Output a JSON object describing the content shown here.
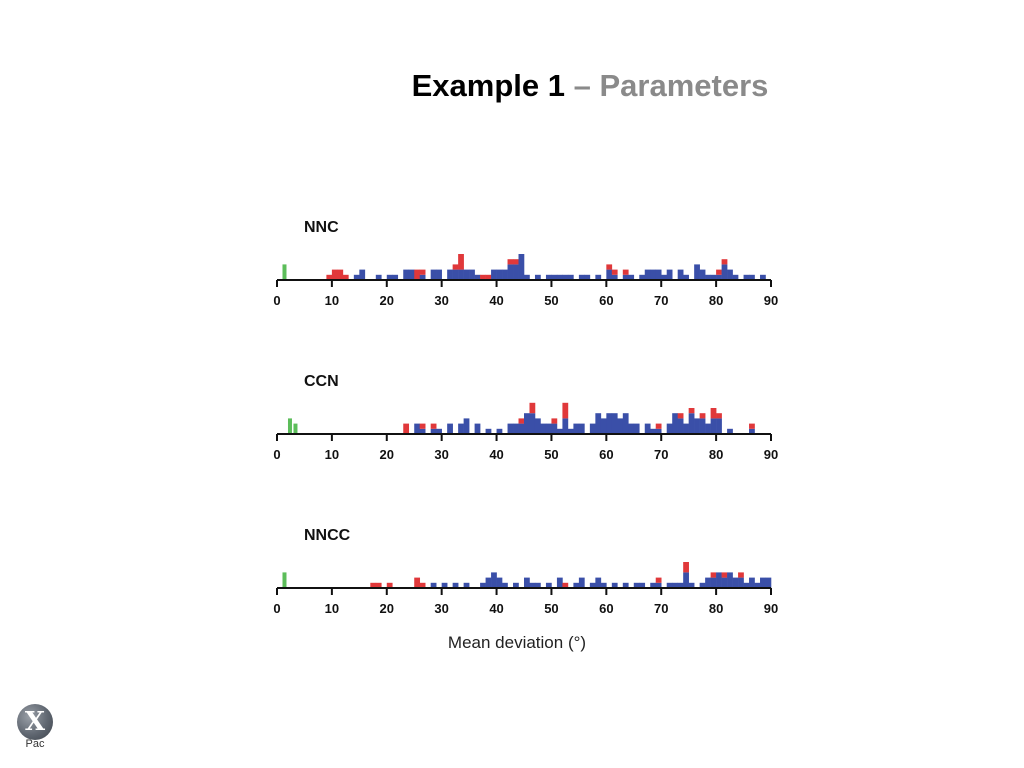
{
  "slide": {
    "title_main": "Example 1",
    "title_sep": "–",
    "title_sub": "Parameters"
  },
  "logo": {
    "mark": "X",
    "text": "Pac"
  },
  "colors": {
    "green": "#5cbd5a",
    "red": "#e0383a",
    "blue": "#3a4fa8",
    "axis": "#111111"
  },
  "chart_data": {
    "type": "bar",
    "xlabel": "Mean deviation (°)",
    "xlim": [
      0,
      90
    ],
    "xticks": [
      0,
      10,
      20,
      30,
      40,
      50,
      60,
      70,
      80,
      90
    ],
    "bin_width": 1,
    "panels": [
      {
        "title": "NNC",
        "bars": [
          [
            1,
            0,
            0,
            3
          ],
          [
            9,
            0,
            1,
            0
          ],
          [
            10,
            0,
            2,
            0
          ],
          [
            11,
            0,
            2,
            0
          ],
          [
            12,
            0,
            1,
            0
          ],
          [
            14,
            0,
            0,
            1
          ],
          [
            15,
            0,
            0,
            2
          ],
          [
            18,
            0,
            0,
            1
          ],
          [
            20,
            0,
            0,
            1
          ],
          [
            21,
            0,
            0,
            1
          ],
          [
            23,
            0,
            0,
            2
          ],
          [
            24,
            0,
            0,
            2
          ],
          [
            25,
            0,
            2,
            0
          ],
          [
            26,
            0,
            1,
            1
          ],
          [
            28,
            0,
            0,
            2
          ],
          [
            29,
            0,
            0,
            2
          ],
          [
            31,
            0,
            0,
            2
          ],
          [
            32,
            0,
            1,
            2
          ],
          [
            33,
            0,
            3,
            2
          ],
          [
            34,
            0,
            0,
            2
          ],
          [
            35,
            0,
            0,
            2
          ],
          [
            36,
            0,
            0,
            1
          ],
          [
            37,
            0,
            1,
            0
          ],
          [
            38,
            0,
            1,
            0
          ],
          [
            39,
            0,
            0,
            2
          ],
          [
            40,
            0,
            0,
            2
          ],
          [
            41,
            0,
            0,
            2
          ],
          [
            42,
            0,
            1,
            3
          ],
          [
            43,
            0,
            1,
            3
          ],
          [
            44,
            0,
            0,
            5
          ],
          [
            45,
            0,
            0,
            1
          ],
          [
            47,
            0,
            0,
            1
          ],
          [
            49,
            0,
            0,
            1
          ],
          [
            50,
            0,
            0,
            1
          ],
          [
            51,
            0,
            0,
            1
          ],
          [
            52,
            0,
            0,
            1
          ],
          [
            53,
            0,
            0,
            1
          ],
          [
            55,
            0,
            0,
            1
          ],
          [
            56,
            0,
            0,
            1
          ],
          [
            58,
            0,
            0,
            1
          ],
          [
            60,
            0,
            1,
            2
          ],
          [
            61,
            0,
            1,
            1
          ],
          [
            63,
            0,
            1,
            1
          ],
          [
            64,
            0,
            0,
            1
          ],
          [
            66,
            0,
            0,
            1
          ],
          [
            67,
            0,
            0,
            2
          ],
          [
            68,
            0,
            0,
            2
          ],
          [
            69,
            0,
            0,
            2
          ],
          [
            70,
            0,
            0,
            1
          ],
          [
            71,
            0,
            0,
            2
          ],
          [
            73,
            0,
            0,
            2
          ],
          [
            74,
            0,
            0,
            1
          ],
          [
            76,
            0,
            0,
            3
          ],
          [
            77,
            0,
            0,
            2
          ],
          [
            78,
            0,
            0,
            1
          ],
          [
            79,
            0,
            0,
            1
          ],
          [
            80,
            0,
            1,
            1
          ],
          [
            81,
            0,
            1,
            3
          ],
          [
            82,
            0,
            0,
            2
          ],
          [
            83,
            0,
            0,
            1
          ],
          [
            85,
            0,
            0,
            1
          ],
          [
            86,
            0,
            0,
            1
          ],
          [
            88,
            0,
            0,
            1
          ]
        ]
      },
      {
        "title": "CCN",
        "bars": [
          [
            2,
            0,
            0,
            3
          ],
          [
            3,
            0,
            0,
            2
          ],
          [
            23,
            0,
            2,
            0
          ],
          [
            25,
            0,
            0,
            2
          ],
          [
            26,
            0,
            1,
            1
          ],
          [
            28,
            0,
            1,
            1
          ],
          [
            29,
            0,
            0,
            1
          ],
          [
            31,
            0,
            0,
            2
          ],
          [
            33,
            0,
            0,
            2
          ],
          [
            34,
            0,
            0,
            3
          ],
          [
            36,
            0,
            0,
            2
          ],
          [
            38,
            0,
            0,
            1
          ],
          [
            40,
            0,
            0,
            1
          ],
          [
            42,
            0,
            0,
            2
          ],
          [
            43,
            0,
            0,
            2
          ],
          [
            44,
            0,
            1,
            2
          ],
          [
            45,
            0,
            0,
            4
          ],
          [
            46,
            0,
            2,
            4
          ],
          [
            47,
            0,
            0,
            3
          ],
          [
            48,
            0,
            0,
            2
          ],
          [
            49,
            0,
            0,
            2
          ],
          [
            50,
            0,
            1,
            2
          ],
          [
            51,
            0,
            0,
            1
          ],
          [
            52,
            0,
            3,
            3
          ],
          [
            53,
            0,
            0,
            1
          ],
          [
            54,
            0,
            0,
            2
          ],
          [
            55,
            0,
            0,
            2
          ],
          [
            57,
            0,
            0,
            2
          ],
          [
            58,
            0,
            0,
            4
          ],
          [
            59,
            0,
            0,
            3
          ],
          [
            60,
            0,
            0,
            4
          ],
          [
            61,
            0,
            0,
            4
          ],
          [
            62,
            0,
            0,
            3
          ],
          [
            63,
            0,
            0,
            4
          ],
          [
            64,
            0,
            0,
            2
          ],
          [
            65,
            0,
            0,
            2
          ],
          [
            67,
            0,
            0,
            2
          ],
          [
            68,
            0,
            0,
            1
          ],
          [
            69,
            0,
            1,
            1
          ],
          [
            71,
            0,
            0,
            2
          ],
          [
            72,
            0,
            0,
            4
          ],
          [
            73,
            0,
            1,
            3
          ],
          [
            74,
            0,
            0,
            2
          ],
          [
            75,
            0,
            1,
            4
          ],
          [
            76,
            0,
            0,
            3
          ],
          [
            77,
            0,
            1,
            3
          ],
          [
            78,
            0,
            0,
            2
          ],
          [
            79,
            0,
            2,
            3
          ],
          [
            80,
            0,
            1,
            3
          ],
          [
            82,
            0,
            0,
            1
          ],
          [
            86,
            0,
            1,
            1
          ]
        ]
      },
      {
        "title": "NNCC",
        "bars": [
          [
            1,
            0,
            0,
            3
          ],
          [
            17,
            0,
            1,
            0
          ],
          [
            18,
            0,
            1,
            0
          ],
          [
            20,
            0,
            1,
            0
          ],
          [
            25,
            0,
            2,
            0
          ],
          [
            26,
            0,
            1,
            0
          ],
          [
            28,
            0,
            0,
            1
          ],
          [
            30,
            0,
            0,
            1
          ],
          [
            32,
            0,
            0,
            1
          ],
          [
            34,
            0,
            0,
            1
          ],
          [
            37,
            0,
            0,
            1
          ],
          [
            38,
            0,
            0,
            2
          ],
          [
            39,
            0,
            0,
            3
          ],
          [
            40,
            0,
            0,
            2
          ],
          [
            41,
            0,
            0,
            1
          ],
          [
            43,
            0,
            0,
            1
          ],
          [
            45,
            0,
            0,
            2
          ],
          [
            46,
            0,
            0,
            1
          ],
          [
            47,
            0,
            0,
            1
          ],
          [
            49,
            0,
            0,
            1
          ],
          [
            51,
            0,
            0,
            2
          ],
          [
            52,
            0,
            1,
            0
          ],
          [
            54,
            0,
            0,
            1
          ],
          [
            55,
            0,
            0,
            2
          ],
          [
            57,
            0,
            0,
            1
          ],
          [
            58,
            0,
            0,
            2
          ],
          [
            59,
            0,
            0,
            1
          ],
          [
            61,
            0,
            0,
            1
          ],
          [
            63,
            0,
            0,
            1
          ],
          [
            65,
            0,
            0,
            1
          ],
          [
            66,
            0,
            0,
            1
          ],
          [
            68,
            0,
            0,
            1
          ],
          [
            69,
            0,
            1,
            1
          ],
          [
            71,
            0,
            0,
            1
          ],
          [
            72,
            0,
            0,
            1
          ],
          [
            73,
            0,
            0,
            1
          ],
          [
            74,
            0,
            2,
            3
          ],
          [
            75,
            0,
            0,
            1
          ],
          [
            77,
            0,
            0,
            1
          ],
          [
            78,
            0,
            0,
            2
          ],
          [
            79,
            0,
            1,
            2
          ],
          [
            80,
            0,
            0,
            3
          ],
          [
            81,
            0,
            1,
            2
          ],
          [
            82,
            0,
            0,
            3
          ],
          [
            83,
            0,
            0,
            2
          ],
          [
            84,
            0,
            1,
            2
          ],
          [
            85,
            0,
            0,
            1
          ],
          [
            86,
            0,
            0,
            2
          ],
          [
            87,
            0,
            0,
            1
          ],
          [
            88,
            0,
            0,
            2
          ],
          [
            89,
            0,
            0,
            2
          ]
        ]
      }
    ]
  }
}
